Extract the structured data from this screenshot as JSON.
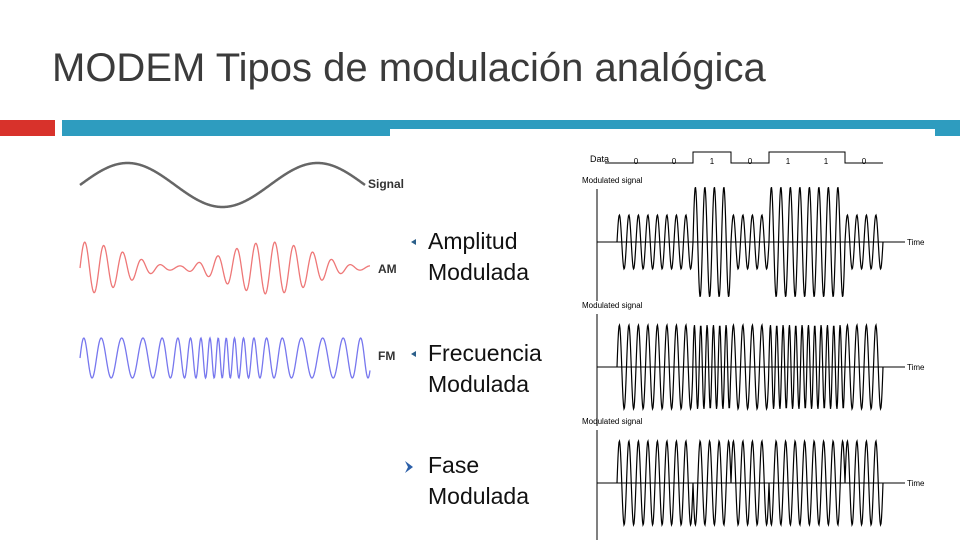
{
  "title": "MODEM Tipos de modulación analógica",
  "bullets": [
    "Amplitud Modulada",
    "Frecuencia Modulada",
    "Fase Modulada"
  ],
  "left_figure": {
    "labels": [
      "Signal",
      "AM",
      "FM"
    ]
  },
  "right_figure": {
    "data_label": "Data",
    "bits": [
      "0",
      "0",
      "1",
      "0",
      "1",
      "1",
      "0"
    ],
    "panels": [
      {
        "ylabel": "Modulated signal",
        "xlabel": "Time"
      },
      {
        "ylabel": "Modulated signal",
        "xlabel": "Time"
      },
      {
        "ylabel": "Modulated signal",
        "xlabel": "Time"
      }
    ]
  }
}
